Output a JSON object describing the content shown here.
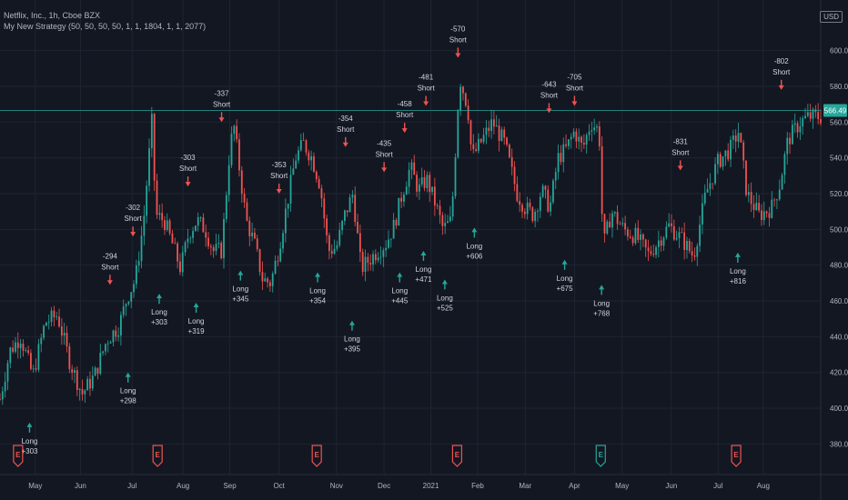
{
  "header": {
    "symbol": "Netflix, Inc., 1h, Cboe BZX",
    "strategy": "My New Strategy (50, 50, 50, 50, 1, 1, 1804, 1, 1, 2077)"
  },
  "price_scale": {
    "currency": "USD",
    "last_price": "566.49"
  },
  "colors": {
    "background": "#131722",
    "grid": "#1f2433",
    "up": "#26a69a",
    "down": "#ef5350",
    "text": "#b2b5be"
  },
  "chart_data": {
    "type": "candlestick",
    "ylim": [
      368,
      612
    ],
    "y_ticks": [
      "600.00",
      "580.00",
      "560.00",
      "540.00",
      "520.00",
      "500.00",
      "480.00",
      "460.00",
      "440.00",
      "420.00",
      "400.00",
      "380.00"
    ],
    "x_ticks": [
      "May",
      "Jun",
      "Jul",
      "Aug",
      "Sep",
      "Oct",
      "Nov",
      "Dec",
      "2021",
      "Feb",
      "Mar",
      "Apr",
      "May",
      "Jun",
      "Jul",
      "Aug"
    ],
    "price_path": [
      [
        0,
        405
      ],
      [
        0.012,
        432
      ],
      [
        0.025,
        440
      ],
      [
        0.04,
        418
      ],
      [
        0.055,
        448
      ],
      [
        0.07,
        452
      ],
      [
        0.085,
        426
      ],
      [
        0.1,
        408
      ],
      [
        0.115,
        418
      ],
      [
        0.13,
        438
      ],
      [
        0.145,
        446
      ],
      [
        0.155,
        462
      ],
      [
        0.165,
        472
      ],
      [
        0.175,
        505
      ],
      [
        0.185,
        560
      ],
      [
        0.19,
        508
      ],
      [
        0.2,
        505
      ],
      [
        0.21,
        492
      ],
      [
        0.22,
        478
      ],
      [
        0.23,
        498
      ],
      [
        0.24,
        505
      ],
      [
        0.25,
        500
      ],
      [
        0.26,
        488
      ],
      [
        0.27,
        488
      ],
      [
        0.28,
        545
      ],
      [
        0.285,
        558
      ],
      [
        0.29,
        540
      ],
      [
        0.3,
        505
      ],
      [
        0.31,
        492
      ],
      [
        0.32,
        472
      ],
      [
        0.33,
        470
      ],
      [
        0.34,
        490
      ],
      [
        0.35,
        515
      ],
      [
        0.36,
        540
      ],
      [
        0.37,
        548
      ],
      [
        0.38,
        540
      ],
      [
        0.39,
        525
      ],
      [
        0.4,
        488
      ],
      [
        0.41,
        490
      ],
      [
        0.42,
        508
      ],
      [
        0.43,
        520
      ],
      [
        0.44,
        478
      ],
      [
        0.45,
        483
      ],
      [
        0.46,
        488
      ],
      [
        0.47,
        492
      ],
      [
        0.48,
        502
      ],
      [
        0.49,
        520
      ],
      [
        0.5,
        535
      ],
      [
        0.51,
        522
      ],
      [
        0.52,
        528
      ],
      [
        0.53,
        515
      ],
      [
        0.54,
        500
      ],
      [
        0.55,
        505
      ],
      [
        0.56,
        585
      ],
      [
        0.57,
        568
      ],
      [
        0.575,
        540
      ],
      [
        0.585,
        548
      ],
      [
        0.6,
        560
      ],
      [
        0.615,
        548
      ],
      [
        0.63,
        520
      ],
      [
        0.64,
        512
      ],
      [
        0.65,
        508
      ],
      [
        0.66,
        522
      ],
      [
        0.67,
        512
      ],
      [
        0.68,
        540
      ],
      [
        0.69,
        545
      ],
      [
        0.7,
        555
      ],
      [
        0.71,
        545
      ],
      [
        0.72,
        560
      ],
      [
        0.73,
        555
      ],
      [
        0.735,
        490
      ],
      [
        0.745,
        510
      ],
      [
        0.76,
        500
      ],
      [
        0.775,
        496
      ],
      [
        0.79,
        486
      ],
      [
        0.8,
        492
      ],
      [
        0.815,
        502
      ],
      [
        0.83,
        495
      ],
      [
        0.845,
        485
      ],
      [
        0.86,
        520
      ],
      [
        0.875,
        538
      ],
      [
        0.89,
        545
      ],
      [
        0.9,
        555
      ],
      [
        0.91,
        520
      ],
      [
        0.925,
        508
      ],
      [
        0.94,
        512
      ],
      [
        0.95,
        525
      ],
      [
        0.96,
        550
      ],
      [
        0.975,
        560
      ],
      [
        0.985,
        563
      ]
    ],
    "annotations": [
      {
        "side": "long",
        "label": "Long",
        "value": "+303",
        "x": 0.036,
        "price": 393
      },
      {
        "side": "long",
        "label": "Long",
        "value": "+298",
        "x": 0.156,
        "price": 421
      },
      {
        "side": "short",
        "label": "Short",
        "value": "-294",
        "x": 0.134,
        "price": 468
      },
      {
        "side": "short",
        "label": "Short",
        "value": "-302",
        "x": 0.162,
        "price": 495
      },
      {
        "side": "long",
        "label": "Long",
        "value": "+303",
        "x": 0.194,
        "price": 465
      },
      {
        "side": "short",
        "label": "Short",
        "value": "-303",
        "x": 0.229,
        "price": 523
      },
      {
        "side": "long",
        "label": "Long",
        "value": "+319",
        "x": 0.239,
        "price": 460
      },
      {
        "side": "short",
        "label": "Short",
        "value": "-337",
        "x": 0.27,
        "price": 559
      },
      {
        "side": "long",
        "label": "Long",
        "value": "+345",
        "x": 0.293,
        "price": 478
      },
      {
        "side": "short",
        "label": "Short",
        "value": "-353",
        "x": 0.34,
        "price": 519
      },
      {
        "side": "long",
        "label": "Long",
        "value": "+354",
        "x": 0.387,
        "price": 477
      },
      {
        "side": "short",
        "label": "Short",
        "value": "-354",
        "x": 0.421,
        "price": 545
      },
      {
        "side": "long",
        "label": "Long",
        "value": "+395",
        "x": 0.429,
        "price": 450
      },
      {
        "side": "short",
        "label": "Short",
        "value": "-435",
        "x": 0.468,
        "price": 531
      },
      {
        "side": "long",
        "label": "Long",
        "value": "+445",
        "x": 0.487,
        "price": 477
      },
      {
        "side": "short",
        "label": "Short",
        "value": "-458",
        "x": 0.493,
        "price": 553
      },
      {
        "side": "long",
        "label": "Long",
        "value": "+471",
        "x": 0.516,
        "price": 489
      },
      {
        "side": "short",
        "label": "Short",
        "value": "-481",
        "x": 0.519,
        "price": 568
      },
      {
        "side": "long",
        "label": "Long",
        "value": "+525",
        "x": 0.542,
        "price": 473
      },
      {
        "side": "short",
        "label": "Short",
        "value": "-570",
        "x": 0.558,
        "price": 595
      },
      {
        "side": "long",
        "label": "Long",
        "value": "+606",
        "x": 0.578,
        "price": 502
      },
      {
        "side": "short",
        "label": "Short",
        "value": "-643",
        "x": 0.669,
        "price": 564
      },
      {
        "side": "long",
        "label": "Long",
        "value": "+675",
        "x": 0.688,
        "price": 484
      },
      {
        "side": "short",
        "label": "Short",
        "value": "-705",
        "x": 0.7,
        "price": 568
      },
      {
        "side": "long",
        "label": "Long",
        "value": "+768",
        "x": 0.733,
        "price": 470
      },
      {
        "side": "short",
        "label": "Short",
        "value": "-831",
        "x": 0.829,
        "price": 532
      },
      {
        "side": "long",
        "label": "Long",
        "value": "+816",
        "x": 0.899,
        "price": 488
      },
      {
        "side": "short",
        "label": "Short",
        "value": "-802",
        "x": 0.952,
        "price": 577
      }
    ],
    "earnings": [
      {
        "x": 0.022,
        "label": "E",
        "type": "down"
      },
      {
        "x": 0.192,
        "label": "E",
        "type": "down"
      },
      {
        "x": 0.386,
        "label": "E",
        "type": "down"
      },
      {
        "x": 0.557,
        "label": "E",
        "type": "down"
      },
      {
        "x": 0.732,
        "label": "E",
        "type": "up"
      },
      {
        "x": 0.897,
        "label": "E",
        "type": "down"
      }
    ]
  }
}
